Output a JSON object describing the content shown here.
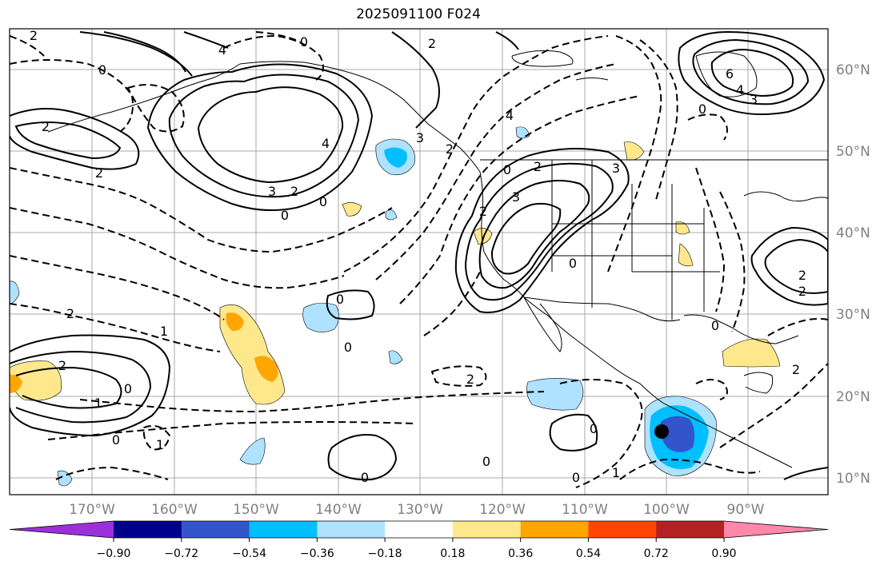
{
  "title": "2025091100 F024",
  "lon_labels": [
    "170°W",
    "160°W",
    "150°W",
    "140°W",
    "130°W",
    "120°W",
    "110°W",
    "100°W",
    "90°W"
  ],
  "lat_labels": [
    "60°N",
    "50°N",
    "40°N",
    "30°N",
    "20°N",
    "10°N"
  ],
  "colorbar": {
    "colors": [
      "#9b30d9",
      "#00008b",
      "#3355cc",
      "#00bfff",
      "#aee2ff",
      "#ffffff",
      "#ffe88c",
      "#ffa500",
      "#ff4500",
      "#b22222",
      "#ff88aa"
    ],
    "ticks": [
      "−0.90",
      "−0.72",
      "−0.54",
      "−0.36",
      "−0.18",
      "0.18",
      "0.36",
      "0.54",
      "0.72",
      "0.90"
    ]
  },
  "contour_labels": [
    "2",
    "4",
    "0",
    "2",
    "0",
    "2",
    "2",
    "3",
    "2",
    "0",
    "4",
    "3",
    "2",
    "0",
    "3",
    "2",
    "0",
    "2",
    "4",
    "0",
    "3",
    "6",
    "4",
    "3",
    "0",
    "2",
    "2",
    "0",
    "0",
    "2",
    "2",
    "1",
    "0",
    "0",
    "2",
    "2",
    "1",
    "0",
    "1",
    "0",
    "0",
    "0",
    "1",
    "0",
    "2"
  ],
  "marker": "storm-center-dot"
}
